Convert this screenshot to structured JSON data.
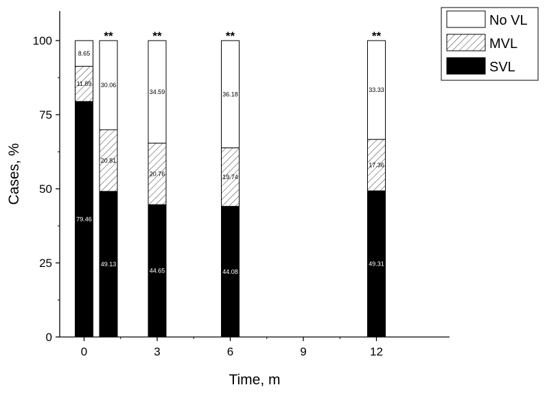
{
  "chart_data": {
    "type": "bar",
    "stacked": true,
    "xlabel": "Time, m",
    "ylabel": "Cases, %",
    "xlim": [
      -1,
      15
    ],
    "ylim": [
      0,
      110
    ],
    "xticks": [
      "0",
      "3",
      "6",
      "9",
      "12"
    ],
    "yticks": [
      "0",
      "25",
      "50",
      "75",
      "100"
    ],
    "grid": false,
    "legend_position": "top-right",
    "x": [
      0,
      1,
      3,
      6,
      12
    ],
    "significance": [
      "",
      "**",
      "**",
      "**",
      "**"
    ],
    "series": [
      {
        "name": "SVL",
        "pattern": "solid",
        "color": "#000000",
        "values": [
          79.46,
          49.13,
          44.65,
          44.08,
          49.31
        ],
        "labels": [
          "79.46",
          "49.13",
          "44.65",
          "44.08",
          "49.31"
        ]
      },
      {
        "name": "MVL",
        "pattern": "hatched",
        "color": "#ffffff",
        "values": [
          11.89,
          20.81,
          20.76,
          19.74,
          17.36
        ],
        "labels": [
          "11.89",
          "20.81",
          "20.76",
          "19.74",
          "17.36"
        ]
      },
      {
        "name": "No VL",
        "pattern": "none",
        "color": "#ffffff",
        "values": [
          8.65,
          30.06,
          34.59,
          36.18,
          33.33
        ],
        "labels": [
          "8.65",
          "30.06",
          "34.59",
          "36.18",
          "33.33"
        ]
      }
    ],
    "legend_order": [
      "No VL",
      "MVL",
      "SVL"
    ]
  }
}
